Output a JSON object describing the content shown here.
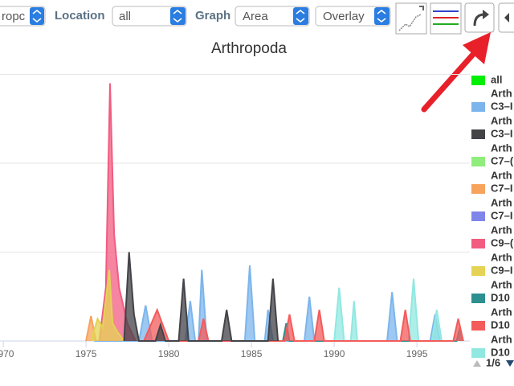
{
  "toolbar": {
    "group_select": "ropc",
    "location_label": "Location",
    "location_select": "all",
    "graph_label": "Graph",
    "graph_select": "Area",
    "mode_select": "Overlay"
  },
  "chart_data": {
    "type": "area",
    "title": "Arthropoda",
    "xlim": [
      1969.8,
      1998.2
    ],
    "xticks": [
      1970,
      1975,
      1980,
      1985,
      1990,
      1995
    ],
    "ylim": [
      0,
      3
    ],
    "yticks": [
      0,
      1,
      2,
      3
    ],
    "grid": true,
    "series": [
      {
        "color": "#7cb5ec",
        "x": [
          1975.5,
          1978.2,
          1978.6,
          1979.0,
          1981.0,
          1981.3,
          1981.6,
          1981.8,
          1982.0,
          1982.3,
          1984.6,
          1984.9,
          1985.2,
          1985.8,
          1986.0,
          1986.3,
          1988.2,
          1988.5,
          1988.8,
          1993.2,
          1993.5,
          1993.8,
          1995.8,
          1996.1,
          1996.4
        ],
        "values": [
          0,
          0,
          0.4,
          0,
          0,
          0.45,
          0,
          0,
          0.8,
          0,
          0,
          0.85,
          0,
          0,
          0.35,
          0,
          0,
          0.5,
          0,
          0,
          0.55,
          0,
          0,
          0.3,
          0
        ]
      },
      {
        "color": "#91e8e1",
        "x": [
          1990.0,
          1990.3,
          1990.6,
          1991.0,
          1991.2,
          1991.4,
          1994.5,
          1994.8,
          1995.1,
          1995.9,
          1996.2,
          1996.5
        ],
        "values": [
          0,
          0.6,
          0,
          0,
          0.45,
          0,
          0,
          0.7,
          0,
          0,
          0.35,
          0
        ]
      },
      {
        "color": "#2b908f",
        "x": [
          1986.9,
          1987.1,
          1987.3,
          1997.4,
          1997.6,
          1997.8
        ],
        "values": [
          0,
          0.2,
          0,
          0,
          0.15,
          0
        ]
      },
      {
        "color": "#f45b5b",
        "x": [
          1978.5,
          1979.3,
          1980.0,
          1981.8,
          1982.1,
          1982.4,
          1987.0,
          1987.3,
          1987.6,
          1988.8,
          1989.1,
          1989.4,
          1994.0,
          1994.3,
          1994.6,
          1997.2,
          1997.5,
          1997.8
        ],
        "values": [
          0,
          0.35,
          0,
          0,
          0.25,
          0,
          0,
          0.3,
          0,
          0,
          0.35,
          0,
          0,
          0.35,
          0,
          0,
          0.25,
          0
        ]
      },
      {
        "color": "#f7a35c",
        "x": [
          1975.0,
          1975.3,
          1975.6
        ],
        "values": [
          0,
          0.28,
          0
        ]
      },
      {
        "color": "#f15c80",
        "x": [
          1975.8,
          1976.2,
          1976.45,
          1976.7,
          1977.0,
          1977.5,
          1978.0
        ],
        "values": [
          0,
          0.6,
          2.9,
          1.2,
          0.6,
          0.2,
          0
        ]
      },
      {
        "color": "#e4d354",
        "x": [
          1975.3,
          1975.7,
          1976.0,
          1976.4,
          1976.6,
          1976.9,
          1977.3
        ],
        "values": [
          0,
          0.25,
          0.15,
          0.8,
          0.2,
          0.1,
          0
        ]
      },
      {
        "color": "#434348",
        "x": [
          1977.3,
          1977.6,
          1977.9,
          1978.2,
          1979.2,
          1979.5,
          1979.8,
          1980.6,
          1980.9,
          1981.2,
          1983.2,
          1983.5,
          1983.8,
          1986.0,
          1986.3,
          1986.6
        ],
        "values": [
          0,
          1.0,
          0.3,
          0,
          0,
          0.18,
          0,
          0,
          0.7,
          0,
          0,
          0.35,
          0,
          0,
          0.7,
          0
        ]
      }
    ]
  },
  "legend": {
    "items": [
      {
        "lines": [
          "all"
        ],
        "color": "#00ee00"
      },
      {
        "lines": [
          "Arth",
          "C3–I"
        ],
        "color": "#7cb5ec"
      },
      {
        "lines": [
          "Arth",
          "C3–I"
        ],
        "color": "#434348"
      },
      {
        "lines": [
          "Arth",
          "C7–("
        ],
        "color": "#90ed7d"
      },
      {
        "lines": [
          "Arth",
          "C7–I"
        ],
        "color": "#f7a35c"
      },
      {
        "lines": [
          "Arth",
          "C7–I"
        ],
        "color": "#8085e9"
      },
      {
        "lines": [
          "Arth",
          "C9–("
        ],
        "color": "#f15c80"
      },
      {
        "lines": [
          "Arth",
          "C9–I"
        ],
        "color": "#e4d354"
      },
      {
        "lines": [
          "Arth",
          "D10"
        ],
        "color": "#2b908f"
      },
      {
        "lines": [
          "Arth",
          "D10"
        ],
        "color": "#f45b5b"
      },
      {
        "lines": [
          "Arth",
          "D10"
        ],
        "color": "#91e8e1"
      }
    ],
    "page": "1/6"
  }
}
